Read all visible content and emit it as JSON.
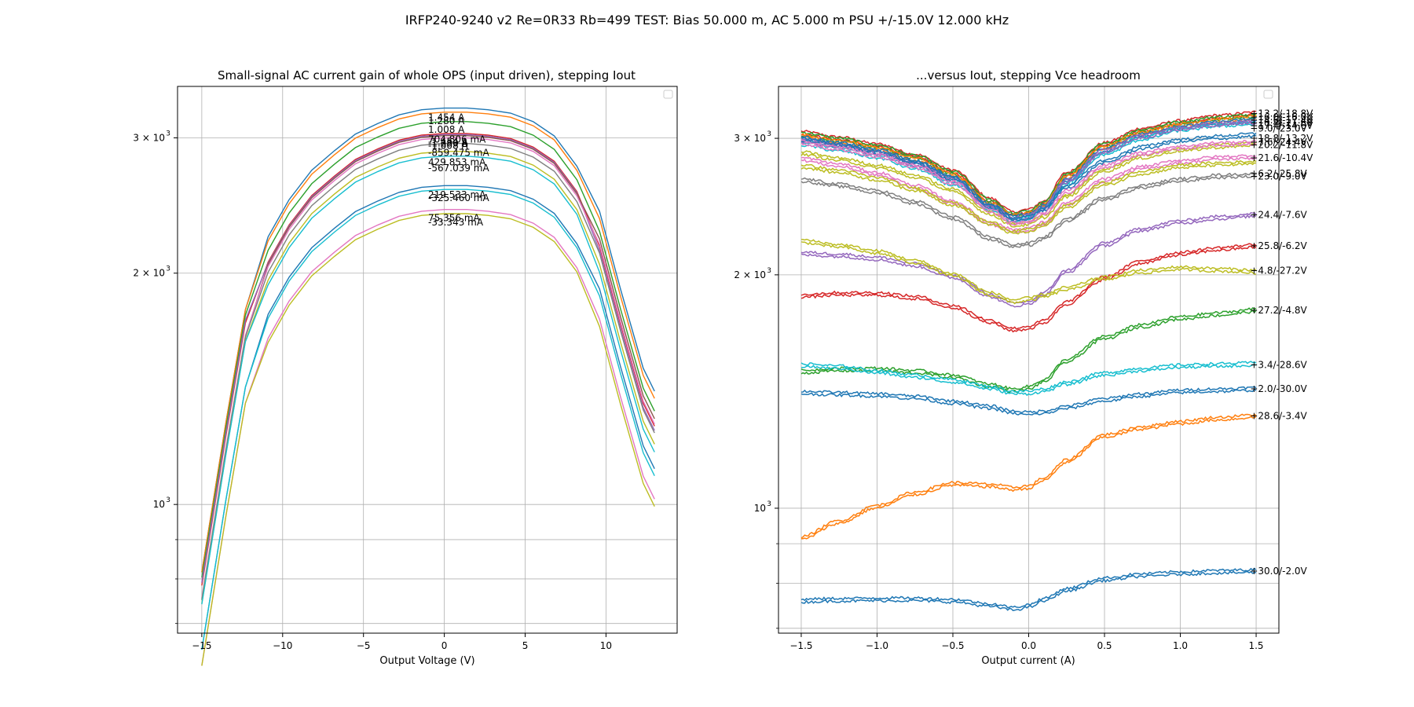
{
  "figure": {
    "title": "IRFP240-9240 v2 Re=0R33 Rb=499 TEST: Bias 50.000 m, AC 5.000 m PSU +/-15.0V 12.000 kHz"
  },
  "palette": [
    "#1f77b4",
    "#ff7f0e",
    "#2ca02c",
    "#d62728",
    "#9467bd",
    "#8c564b",
    "#e377c2",
    "#7f7f7f",
    "#bcbd22",
    "#17becf"
  ],
  "chart_data": [
    {
      "type": "line",
      "title": "Small-signal AC current gain of whole OPS (input driven), stepping Iout",
      "xlabel": "Output Voltage (V)",
      "ylabel": "",
      "xlim": [
        -16.5,
        14.4
      ],
      "ylim": [
        680,
        3500
      ],
      "yscale": "log",
      "grid": true,
      "legend": "top-right",
      "xticks": [
        {
          "v": -15,
          "label": "−15"
        },
        {
          "v": -10,
          "label": "−10"
        },
        {
          "v": -5,
          "label": "−5"
        },
        {
          "v": 0,
          "label": "0"
        },
        {
          "v": 5,
          "label": "5"
        },
        {
          "v": 10,
          "label": "10"
        }
      ],
      "yticks": [
        {
          "v": 1000,
          "label": "10^3",
          "base": "10",
          "exp": "3"
        },
        {
          "v": 2000,
          "label": "2×10^3",
          "base": "2 × 10",
          "exp": "3"
        },
        {
          "v": 3000,
          "label": "3×10^3",
          "base": "3 × 10",
          "exp": "3"
        }
      ],
      "yminor": [
        700,
        800,
        900
      ],
      "x": [
        -15,
        -13.5,
        -12.3,
        -10.9,
        -9.6,
        -8.2,
        -6.8,
        -5.5,
        -4.1,
        -2.8,
        -1.4,
        0,
        1.4,
        2.7,
        4.1,
        5.5,
        6.8,
        8.2,
        9.6,
        10.9,
        12.3,
        13
      ],
      "series": [
        {
          "name": "1.454 A",
          "peak": 3280,
          "color": 0,
          "label_y": 3190
        },
        {
          "name": "1.280 A",
          "peak": 3240,
          "color": 1,
          "label_y": 3155
        },
        {
          "name": "1.008 A",
          "peak": 3150,
          "color": 2,
          "label_y": 3075
        },
        {
          "name": "704.806 mA",
          "peak": 3040,
          "color": 3,
          "label_y": 2985
        },
        {
          "name": "-1.454 A",
          "peak": 3030,
          "color": 4,
          "label_y": 2965
        },
        {
          "name": "-1.280 A",
          "peak": 3020,
          "color": 5,
          "label_y": 2950
        },
        {
          "name": "-1.008 A",
          "peak": 3000,
          "color": 6,
          "label_y": 2930
        },
        {
          "name": "-859.475 mA",
          "peak": 2950,
          "color": 7,
          "label_y": 2870
        },
        {
          "name": "429.853 mA",
          "peak": 2880,
          "color": 8,
          "label_y": 2790
        },
        {
          "name": "-567.039 mA",
          "peak": 2840,
          "color": 9,
          "label_y": 2740
        },
        {
          "name": "219.533 mA",
          "peak": 2600,
          "color": 0,
          "label_y": 2530
        },
        {
          "name": "-325.460 mA",
          "peak": 2570,
          "color": 9,
          "label_y": 2505
        },
        {
          "name": "75.356 mA",
          "peak": 2420,
          "color": 6,
          "label_y": 2360
        },
        {
          "name": "-33.343 mA",
          "peak": 2390,
          "color": 8,
          "label_y": 2330
        }
      ]
    },
    {
      "type": "line",
      "title": "...versus Iout, stepping Vce headroom",
      "xlabel": "Output current (A)",
      "ylabel": "",
      "xlim": [
        -1.65,
        1.65
      ],
      "ylim": [
        690,
        3500
      ],
      "yscale": "log",
      "grid": true,
      "legend": "top-right",
      "xticks": [
        {
          "v": -1.5,
          "label": "−1.5"
        },
        {
          "v": -1.0,
          "label": "−1.0"
        },
        {
          "v": -0.5,
          "label": "−0.5"
        },
        {
          "v": 0.0,
          "label": "0.0"
        },
        {
          "v": 0.5,
          "label": "0.5"
        },
        {
          "v": 1.0,
          "label": "1.0"
        },
        {
          "v": 1.5,
          "label": "1.5"
        }
      ],
      "yticks": [
        {
          "v": 1000,
          "label": "10^3",
          "base": "10",
          "exp": "3"
        },
        {
          "v": 2000,
          "label": "2×10^3",
          "base": "2 × 10",
          "exp": "3"
        },
        {
          "v": 3000,
          "label": "3×10^3",
          "base": "3 × 10",
          "exp": "3"
        }
      ],
      "yminor": [
        700,
        800,
        900
      ],
      "x": [
        -1.5,
        -1.25,
        -1.0,
        -0.75,
        -0.5,
        -0.25,
        -0.1,
        0.0,
        0.1,
        0.25,
        0.5,
        0.75,
        1.0,
        1.25,
        1.5
      ],
      "series": [
        {
          "name": "+13.2/-18.8V",
          "color": 3,
          "y": [
            3050,
            3000,
            2940,
            2850,
            2720,
            2500,
            2400,
            2420,
            2480,
            2700,
            2950,
            3080,
            3150,
            3200,
            3230
          ],
          "label_y": 3230
        },
        {
          "name": "+16.0/-16.0V",
          "color": 2,
          "y": [
            3040,
            2990,
            2930,
            2840,
            2710,
            2490,
            2390,
            2410,
            2470,
            2690,
            2940,
            3070,
            3140,
            3185,
            3210
          ],
          "label_y": 3195
        },
        {
          "name": "+14.6/-17.4V",
          "color": 1,
          "y": [
            3020,
            2970,
            2910,
            2820,
            2690,
            2470,
            2380,
            2400,
            2460,
            2670,
            2920,
            3050,
            3120,
            3165,
            3190
          ],
          "label_y": 3165
        },
        {
          "name": "+10.4/-21.6V",
          "color": 0,
          "y": [
            3000,
            2950,
            2890,
            2800,
            2670,
            2460,
            2370,
            2390,
            2450,
            2650,
            2900,
            3030,
            3100,
            3140,
            3165
          ],
          "label_y": 3140
        },
        {
          "name": "+17.4/-14.6V",
          "color": 9,
          "y": [
            2950,
            2900,
            2840,
            2750,
            2620,
            2430,
            2350,
            2370,
            2430,
            2620,
            2870,
            3000,
            3080,
            3120,
            3140
          ],
          "label_y": 3115
        },
        {
          "name": "+9.0/-23.0V",
          "color": 4,
          "y": [
            2980,
            2930,
            2870,
            2780,
            2650,
            2450,
            2360,
            2380,
            2440,
            2640,
            2890,
            3020,
            3090,
            3130,
            3150
          ],
          "label_y": 3090
        },
        {
          "name": "+18.8/-13.2V",
          "color": 0,
          "y": [
            2990,
            2940,
            2880,
            2790,
            2660,
            2450,
            2360,
            2370,
            2430,
            2600,
            2800,
            2920,
            2980,
            3010,
            3030
          ],
          "label_y": 3000
        },
        {
          "name": "+20.2/-11.8V",
          "color": 8,
          "y": [
            2870,
            2820,
            2760,
            2680,
            2570,
            2400,
            2320,
            2330,
            2380,
            2530,
            2730,
            2840,
            2900,
            2930,
            2950
          ],
          "label_y": 2940
        },
        {
          "name": "+7.6/-24.4V",
          "color": 6,
          "y": [
            2960,
            2910,
            2850,
            2760,
            2630,
            2420,
            2330,
            2340,
            2400,
            2560,
            2760,
            2870,
            2920,
            2950,
            2960
          ],
          "label_y": 2965
        },
        {
          "name": "+21.6/-10.4V",
          "color": 6,
          "y": [
            2820,
            2770,
            2700,
            2600,
            2480,
            2330,
            2280,
            2290,
            2330,
            2470,
            2650,
            2750,
            2800,
            2830,
            2840
          ],
          "label_y": 2830
        },
        {
          "name": "+6.2/-25.8V",
          "color": 8,
          "y": [
            2760,
            2720,
            2660,
            2580,
            2470,
            2330,
            2270,
            2280,
            2320,
            2450,
            2620,
            2710,
            2760,
            2780,
            2790
          ],
          "label_y": 2700
        },
        {
          "name": "+23.0/-9.0V",
          "color": 7,
          "y": [
            2650,
            2610,
            2560,
            2480,
            2370,
            2230,
            2180,
            2190,
            2230,
            2350,
            2510,
            2600,
            2650,
            2680,
            2690
          ],
          "label_y": 2680
        },
        {
          "name": "+24.4/-7.6V",
          "color": 4,
          "y": [
            2130,
            2120,
            2100,
            2060,
            1990,
            1880,
            1830,
            1840,
            1890,
            2020,
            2190,
            2290,
            2340,
            2370,
            2390
          ],
          "label_y": 2390
        },
        {
          "name": "+25.8/-6.2V",
          "color": 3,
          "y": [
            1880,
            1890,
            1890,
            1870,
            1820,
            1740,
            1700,
            1710,
            1740,
            1840,
            1980,
            2080,
            2130,
            2160,
            2180
          ],
          "label_y": 2180
        },
        {
          "name": "+4.8/-27.2V",
          "color": 8,
          "y": [
            2210,
            2180,
            2140,
            2080,
            2000,
            1890,
            1850,
            1860,
            1880,
            1920,
            1980,
            2020,
            2040,
            2030,
            2020
          ],
          "label_y": 2025
        },
        {
          "name": "+27.2/-4.8V",
          "color": 2,
          "y": [
            1500,
            1510,
            1510,
            1500,
            1480,
            1440,
            1420,
            1430,
            1460,
            1550,
            1660,
            1720,
            1760,
            1780,
            1800
          ],
          "label_y": 1800
        },
        {
          "name": "+3.4/-28.6V",
          "color": 9,
          "y": [
            1530,
            1520,
            1500,
            1480,
            1460,
            1430,
            1410,
            1410,
            1420,
            1450,
            1490,
            1510,
            1525,
            1530,
            1535
          ],
          "label_y": 1530
        },
        {
          "name": "+2.0/-30.0V",
          "color": 0,
          "y": [
            1410,
            1405,
            1400,
            1390,
            1370,
            1350,
            1330,
            1325,
            1330,
            1350,
            1380,
            1400,
            1415,
            1420,
            1425
          ],
          "label_y": 1425
        },
        {
          "name": "+28.6/-3.4V",
          "color": 1,
          "y": [
            915,
            960,
            1005,
            1045,
            1075,
            1070,
            1060,
            1065,
            1090,
            1150,
            1240,
            1270,
            1290,
            1305,
            1315
          ],
          "label_y": 1315
        },
        {
          "name": "+30.0/-2.0V",
          "color": 0,
          "y": [
            760,
            762,
            763,
            763,
            760,
            750,
            742,
            748,
            762,
            785,
            810,
            820,
            825,
            828,
            830
          ],
          "label_y": 830
        }
      ]
    }
  ]
}
